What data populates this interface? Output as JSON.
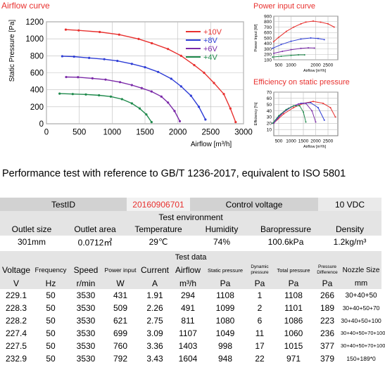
{
  "main_chart": {
    "title": "Airflow curve",
    "ylabel": "Static Pressure [Pa]",
    "xlabel": "Airflow [m³/h]",
    "x_ticks": [
      "0",
      "500",
      "1000",
      "1500",
      "2000",
      "2500",
      "3000"
    ],
    "y_ticks": [
      "0",
      "200",
      "400",
      "600",
      "800",
      "1000",
      "1200"
    ]
  },
  "power_chart": {
    "title": "Power input curve",
    "ylabel": "Power Input [W]",
    "xlabel": "Airflow [m³/h]",
    "x_ticks": [
      "500",
      "1000",
      "2000",
      "2500"
    ],
    "y_ticks": [
      "100",
      "200",
      "300",
      "400",
      "500",
      "600",
      "700",
      "800",
      "900"
    ]
  },
  "eff_chart": {
    "title": "Efficiency on static pressure",
    "ylabel": "Efficiency [%]",
    "xlabel": "Airflow [m³/h]",
    "x_ticks": [
      "500",
      "1000",
      "1500",
      "2000",
      "2500"
    ],
    "y_ticks": [
      "10",
      "20",
      "30",
      "40",
      "50",
      "60",
      "70"
    ]
  },
  "chart_data": [
    {
      "type": "line",
      "title": "Airflow curve",
      "xlabel": "Airflow [m³/h]",
      "ylabel": "Static Pressure [Pa]",
      "xlim": [
        0,
        3000
      ],
      "ylim": [
        0,
        1200
      ],
      "grid": true,
      "legend": "top-right",
      "series": [
        {
          "name": "+10V",
          "color": "#e8312f",
          "points": [
            [
              294,
              1108
            ],
            [
              491,
              1099
            ],
            [
              811,
              1080
            ],
            [
              1107,
              1049
            ],
            [
              1403,
              998
            ],
            [
              1604,
              948
            ],
            [
              1850,
              880
            ],
            [
              2050,
              800
            ],
            [
              2250,
              690
            ],
            [
              2400,
              600
            ],
            [
              2550,
              480
            ],
            [
              2700,
              350
            ],
            [
              2800,
              180
            ],
            [
              2880,
              20
            ]
          ]
        },
        {
          "name": "+8V",
          "color": "#2f3ed6",
          "points": [
            [
              240,
              795
            ],
            [
              420,
              790
            ],
            [
              650,
              775
            ],
            [
              880,
              760
            ],
            [
              1080,
              740
            ],
            [
              1300,
              705
            ],
            [
              1500,
              665
            ],
            [
              1700,
              610
            ],
            [
              1900,
              530
            ],
            [
              2050,
              440
            ],
            [
              2200,
              330
            ],
            [
              2320,
              200
            ],
            [
              2420,
              50
            ]
          ]
        },
        {
          "name": "+6V",
          "color": "#7b2aa8",
          "points": [
            [
              300,
              550
            ],
            [
              480,
              548
            ],
            [
              700,
              535
            ],
            [
              900,
              520
            ],
            [
              1120,
              490
            ],
            [
              1300,
              455
            ],
            [
              1450,
              420
            ],
            [
              1600,
              380
            ],
            [
              1750,
              320
            ],
            [
              1850,
              250
            ],
            [
              1950,
              150
            ],
            [
              2030,
              30
            ]
          ]
        },
        {
          "name": "+4V",
          "color": "#1f8a4c",
          "points": [
            [
              200,
              355
            ],
            [
              400,
              350
            ],
            [
              600,
              345
            ],
            [
              800,
              335
            ],
            [
              980,
              320
            ],
            [
              1150,
              290
            ],
            [
              1300,
              240
            ],
            [
              1420,
              180
            ],
            [
              1520,
              110
            ],
            [
              1600,
              20
            ]
          ]
        }
      ]
    },
    {
      "type": "line",
      "title": "Power input curve",
      "xlabel": "Airflow [m³/h]",
      "ylabel": "Power Input [W]",
      "xlim": [
        300,
        2900
      ],
      "ylim": [
        100,
        900
      ],
      "grid": true,
      "series": [
        {
          "color": "#e8312f",
          "points": [
            [
              294,
              431
            ],
            [
              491,
              509
            ],
            [
              811,
              621
            ],
            [
              1107,
              699
            ],
            [
              1403,
              760
            ],
            [
              1604,
              792
            ],
            [
              1900,
              810
            ],
            [
              2200,
              790
            ],
            [
              2500,
              760
            ],
            [
              2750,
              700
            ]
          ]
        },
        {
          "color": "#2f3ed6",
          "points": [
            [
              250,
              310
            ],
            [
              600,
              380
            ],
            [
              1000,
              440
            ],
            [
              1400,
              480
            ],
            [
              1800,
              500
            ],
            [
              2100,
              490
            ],
            [
              2350,
              470
            ]
          ]
        },
        {
          "color": "#7b2aa8",
          "points": [
            [
              300,
              220
            ],
            [
              650,
              255
            ],
            [
              1000,
              285
            ],
            [
              1400,
              310
            ],
            [
              1700,
              320
            ],
            [
              1950,
              315
            ]
          ]
        },
        {
          "color": "#1f8a4c",
          "points": [
            [
              250,
              150
            ],
            [
              600,
              165
            ],
            [
              1000,
              180
            ],
            [
              1300,
              190
            ],
            [
              1550,
              190
            ]
          ]
        }
      ]
    },
    {
      "type": "line",
      "title": "Efficiency on static pressure",
      "xlabel": "Airflow [m³/h]",
      "ylabel": "Efficiency [%]",
      "xlim": [
        300,
        2900
      ],
      "ylim": [
        0,
        70
      ],
      "grid": true,
      "series": [
        {
          "color": "#e8312f",
          "points": [
            [
              294,
              20
            ],
            [
              700,
              35
            ],
            [
              1100,
              45
            ],
            [
              1500,
              52
            ],
            [
              1900,
              55
            ],
            [
              2300,
              52
            ],
            [
              2600,
              45
            ],
            [
              2800,
              30
            ]
          ]
        },
        {
          "color": "#2f3ed6",
          "points": [
            [
              250,
              20
            ],
            [
              600,
              35
            ],
            [
              1000,
              46
            ],
            [
              1400,
              52
            ],
            [
              1800,
              53
            ],
            [
              2100,
              45
            ],
            [
              2350,
              25
            ]
          ]
        },
        {
          "color": "#7b2aa8",
          "points": [
            [
              300,
              20
            ],
            [
              600,
              34
            ],
            [
              900,
              44
            ],
            [
              1300,
              51
            ],
            [
              1600,
              52
            ],
            [
              1850,
              40
            ],
            [
              2000,
              22
            ]
          ]
        },
        {
          "color": "#1f8a4c",
          "points": [
            [
              250,
              20
            ],
            [
              500,
              32
            ],
            [
              800,
              42
            ],
            [
              1100,
              48
            ],
            [
              1350,
              48
            ],
            [
              1500,
              38
            ],
            [
              1600,
              22
            ]
          ]
        }
      ]
    }
  ],
  "perf_title": "Performance test with reference to GB/T 1236-2017, equivalent to ISO 5801",
  "info_row": {
    "testid_label": "TestID",
    "testid_value": "20160906701",
    "control_label": "Control voltage",
    "control_value": "10 VDC"
  },
  "env": {
    "heading": "Test environment",
    "headers": [
      "Outlet size",
      "Outlet area",
      "Temperature",
      "Humidity",
      "Baropressure",
      "Density"
    ],
    "values": [
      "301mm",
      "0.0712㎡",
      "29℃",
      "74%",
      "100.6kPa",
      "1.2kg/m³"
    ]
  },
  "test": {
    "heading": "Test data",
    "headers": [
      "Voltage",
      "Frequency",
      "Speed",
      "Power input",
      "Current",
      "Airflow",
      "Static pressure",
      "Dynamic pressure",
      "Total pressure",
      "Pressure Difference",
      "Nozzle Size"
    ],
    "units": [
      "V",
      "Hz",
      "r/min",
      "W",
      "A",
      "m³/h",
      "Pa",
      "Pa",
      "Pa",
      "Pa",
      "mm"
    ],
    "rows": [
      [
        "229.1",
        "50",
        "3530",
        "431",
        "1.91",
        "294",
        "1108",
        "1",
        "1108",
        "266",
        "30+40+50"
      ],
      [
        "228.3",
        "50",
        "3530",
        "509",
        "2.26",
        "491",
        "1099",
        "2",
        "1101",
        "189",
        "30+40+50+70"
      ],
      [
        "228.2",
        "50",
        "3530",
        "621",
        "2.75",
        "811",
        "1080",
        "6",
        "1086",
        "223",
        "30+40+50+100"
      ],
      [
        "227.4",
        "50",
        "3530",
        "699",
        "3.09",
        "1107",
        "1049",
        "11",
        "1060",
        "236",
        "30+40+50+70+100"
      ],
      [
        "227.5",
        "50",
        "3530",
        "760",
        "3.36",
        "1403",
        "998",
        "17",
        "1015",
        "377",
        "30+40+50+70+100"
      ],
      [
        "232.9",
        "50",
        "3530",
        "792",
        "3.43",
        "1604",
        "948",
        "22",
        "971",
        "379",
        "150+189*0"
      ]
    ]
  }
}
